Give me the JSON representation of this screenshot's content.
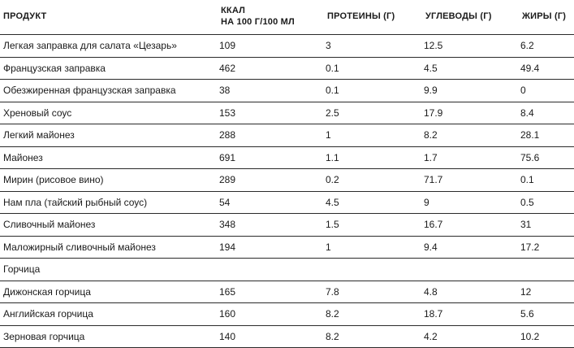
{
  "table": {
    "headers": {
      "product": "ПРОДУКТ",
      "kcal_line1": "ККАЛ",
      "kcal_line2": "НА 100 Г/100 МЛ",
      "protein": "ПРОТЕИНЫ (Г)",
      "carbs": "УГЛЕВОДЫ (Г)",
      "fat": "ЖИРЫ (Г)"
    },
    "rows": [
      {
        "product": "Легкая заправка для салата «Цезарь»",
        "kcal": "109",
        "protein": "3",
        "carbs": "12.5",
        "fat": "6.2"
      },
      {
        "product": "Французская заправка",
        "kcal": "462",
        "protein": "0.1",
        "carbs": "4.5",
        "fat": "49.4"
      },
      {
        "product": "Обезжиренная французская заправка",
        "kcal": "38",
        "protein": "0.1",
        "carbs": "9.9",
        "fat": "0"
      },
      {
        "product": "Хреновый соус",
        "kcal": "153",
        "protein": "2.5",
        "carbs": "17.9",
        "fat": "8.4"
      },
      {
        "product": "Легкий майонез",
        "kcal": "288",
        "protein": "1",
        "carbs": "8.2",
        "fat": "28.1"
      },
      {
        "product": "Майонез",
        "kcal": "691",
        "protein": "1.1",
        "carbs": "1.7",
        "fat": "75.6"
      },
      {
        "product": "Мирин (рисовое вино)",
        "kcal": "289",
        "protein": "0.2",
        "carbs": "71.7",
        "fat": "0.1"
      },
      {
        "product": "Нам пла (тайский рыбный соус)",
        "kcal": "54",
        "protein": "4.5",
        "carbs": "9",
        "fat": "0.5"
      },
      {
        "product": "Сливочный майонез",
        "kcal": "348",
        "protein": "1.5",
        "carbs": "16.7",
        "fat": "31"
      },
      {
        "product": "Маложирный сливочный майонез",
        "kcal": "194",
        "protein": "1",
        "carbs": "9.4",
        "fat": "17.2"
      },
      {
        "product": "Горчица",
        "kcal": "",
        "protein": "",
        "carbs": "",
        "fat": ""
      },
      {
        "product": "Дижонская горчица",
        "kcal": "165",
        "protein": "7.8",
        "carbs": "4.8",
        "fat": "12"
      },
      {
        "product": "Английская горчица",
        "kcal": "160",
        "protein": "8.2",
        "carbs": "18.7",
        "fat": "5.6"
      },
      {
        "product": "Зерновая горчица",
        "kcal": "140",
        "protein": "8.2",
        "carbs": "4.2",
        "fat": "10.2"
      }
    ]
  }
}
